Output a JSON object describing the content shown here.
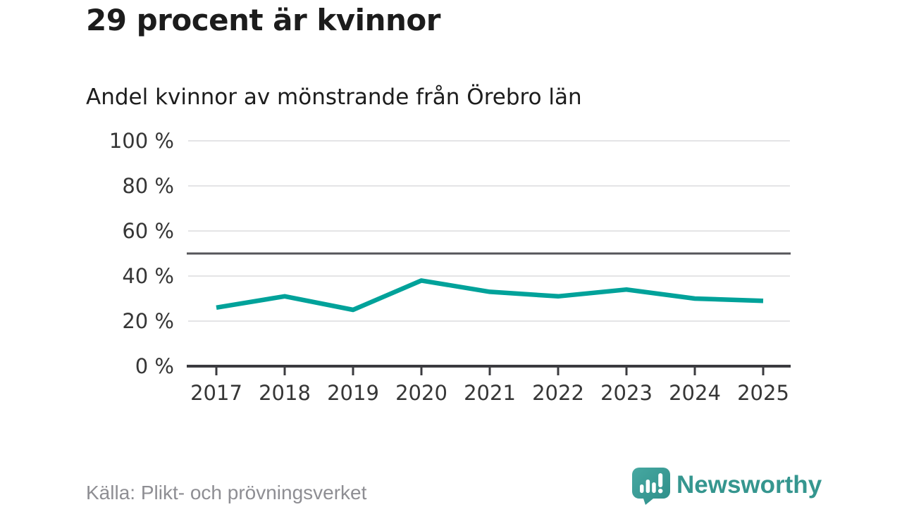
{
  "header": {
    "title": "29 procent är kvinnor",
    "subtitle": "Andel kvinnor av mönstrande från Örebro län"
  },
  "footer": {
    "source": "Källa: Plikt- och prövningsverket",
    "brand": "Newsworthy"
  },
  "colors": {
    "line": "#00a29a",
    "gridline": "#e4e4e6",
    "axis": "#3b3b3f",
    "reference_line": "#55555a",
    "tick_label": "#363636",
    "title_text": "#1c1c1c",
    "source_text": "#8e8e93",
    "brand_teal": "#35968f",
    "logo_teal_light": "#46a8a1",
    "logo_teal_dark": "#2e8e89"
  },
  "chart_data": {
    "type": "line",
    "title": "29 procent är kvinnor",
    "subtitle": "Andel kvinnor av mönstrande från Örebro län",
    "categories": [
      "2017",
      "2018",
      "2019",
      "2020",
      "2021",
      "2022",
      "2023",
      "2024",
      "2025"
    ],
    "series": [
      {
        "name": "Andel kvinnor av mönstrande",
        "values": [
          26,
          31,
          25,
          38,
          33,
          31,
          34,
          30,
          29
        ]
      }
    ],
    "unit": "%",
    "ylim": [
      0,
      100
    ],
    "yticks": [
      0,
      20,
      40,
      60,
      80,
      100
    ],
    "ytick_suffix": " %",
    "reference_line": 50,
    "grid": "horizontal",
    "legend": "none",
    "source": "Källa: Plikt- och prövningsverket"
  }
}
